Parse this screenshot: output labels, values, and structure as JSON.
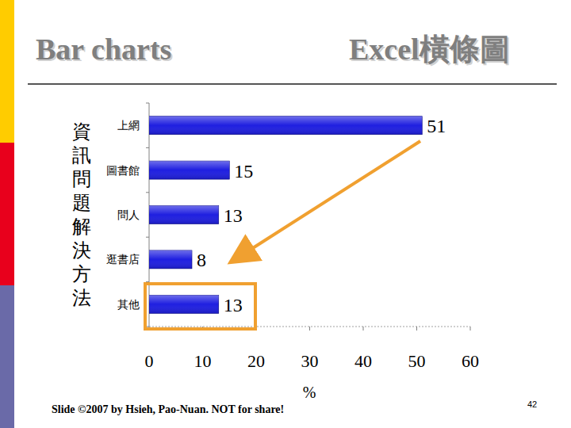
{
  "chart_data": {
    "type": "bar",
    "title": "Bar charts",
    "subtitle": "Excel橫條圖",
    "ylabel": "資訊問題解決方法",
    "xlabel": "%",
    "categories": [
      "上網",
      "圖書館",
      "問人",
      "逛書店",
      "其他"
    ],
    "values": [
      51,
      15,
      13,
      8,
      13
    ],
    "color": "#1f1fe0",
    "xlim": [
      0,
      60
    ],
    "xticks": [
      0,
      10,
      20,
      30,
      40,
      50,
      60
    ],
    "orientation": "horizontal",
    "data_labels": true,
    "grid": false
  },
  "footer": "Slide ©2007 by Hsieh, Pao-Nuan.  NOT for share!",
  "page_number": 42
}
